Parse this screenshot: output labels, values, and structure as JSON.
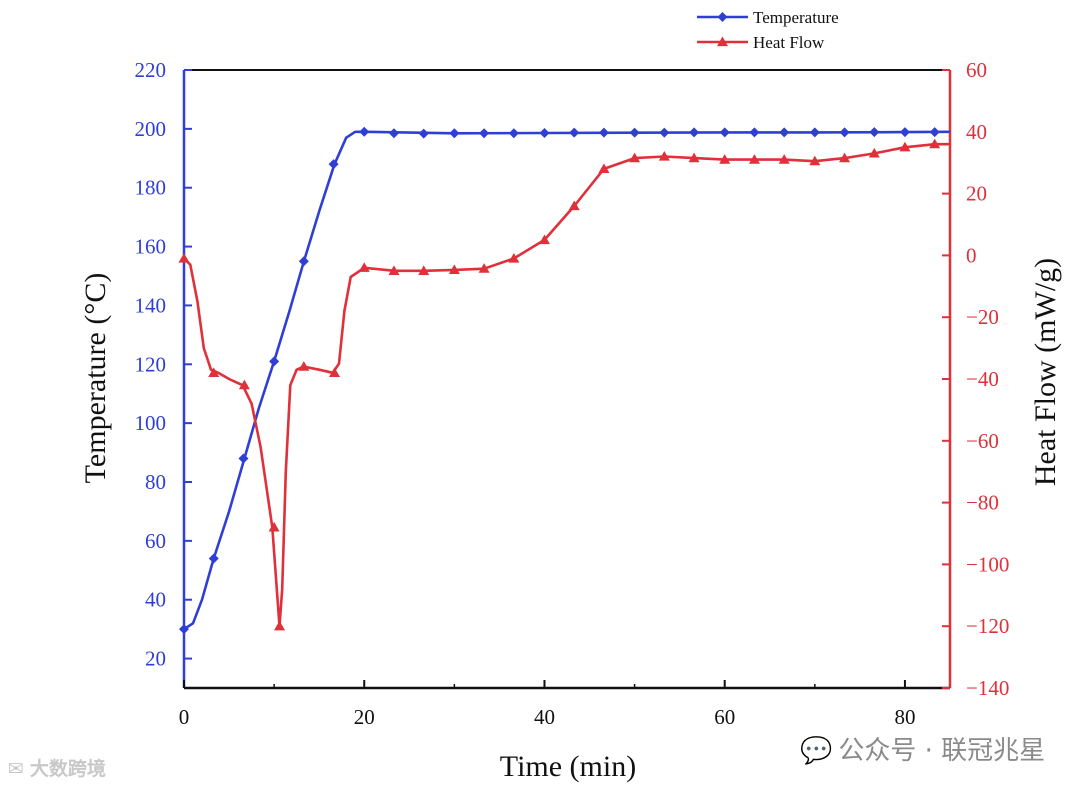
{
  "chart_data": {
    "type": "line",
    "title": "",
    "xlabel": "Time (min)",
    "ylabel_left": "Temperature (°C)",
    "ylabel_right": "Heat Flow (mW/g)",
    "xlim": [
      0,
      85
    ],
    "ylim_left": [
      10,
      220
    ],
    "ylim_right": [
      -140,
      60
    ],
    "x_ticks": [
      0,
      20,
      40,
      60,
      80
    ],
    "y_left_ticks": [
      20,
      40,
      60,
      80,
      100,
      120,
      140,
      160,
      180,
      200,
      220
    ],
    "y_right_ticks": [
      -140,
      -120,
      -100,
      -80,
      -60,
      -40,
      -20,
      0,
      20,
      40,
      60
    ],
    "legend_position": "top-right",
    "series": [
      {
        "name": "Temperature",
        "axis": "left",
        "color": "#2f3fd6",
        "marker": "diamond",
        "curve": [
          [
            0,
            30
          ],
          [
            1,
            32
          ],
          [
            2,
            40
          ],
          [
            3.3,
            54
          ],
          [
            5,
            70
          ],
          [
            6.7,
            88
          ],
          [
            8.3,
            105
          ],
          [
            10,
            121
          ],
          [
            11.7,
            138
          ],
          [
            13.3,
            155
          ],
          [
            15,
            172
          ],
          [
            16.7,
            188
          ],
          [
            18,
            197
          ],
          [
            19,
            199
          ],
          [
            20,
            199
          ],
          [
            30,
            198.5
          ],
          [
            40,
            198.6
          ],
          [
            50,
            198.7
          ],
          [
            60,
            198.8
          ],
          [
            70,
            198.8
          ],
          [
            80,
            198.9
          ],
          [
            85,
            199
          ]
        ],
        "markers": [
          [
            0,
            30
          ],
          [
            3.3,
            54
          ],
          [
            6.6,
            88
          ],
          [
            10,
            121
          ],
          [
            13.3,
            155
          ],
          [
            16.6,
            188
          ],
          [
            20,
            199
          ],
          [
            23.3,
            198.5
          ],
          [
            26.6,
            198.4
          ],
          [
            30,
            198.5
          ],
          [
            33.3,
            198.5
          ],
          [
            36.6,
            198.5
          ],
          [
            40,
            198.6
          ],
          [
            43.3,
            198.7
          ],
          [
            46.6,
            198.7
          ],
          [
            50,
            198.7
          ],
          [
            53.3,
            198.7
          ],
          [
            56.6,
            198.8
          ],
          [
            60,
            198.8
          ],
          [
            63.3,
            198.8
          ],
          [
            66.6,
            198.8
          ],
          [
            70,
            198.8
          ],
          [
            73.3,
            198.8
          ],
          [
            76.6,
            198.9
          ],
          [
            80,
            198.9
          ],
          [
            83.3,
            198.9
          ]
        ]
      },
      {
        "name": "Heat Flow",
        "axis": "right",
        "color": "#e0303a",
        "marker": "triangle",
        "curve": [
          [
            0,
            -1
          ],
          [
            0.7,
            -3
          ],
          [
            1.5,
            -15
          ],
          [
            2.2,
            -30
          ],
          [
            3,
            -37
          ],
          [
            3.8,
            -38
          ],
          [
            5,
            -40
          ],
          [
            6.5,
            -42
          ],
          [
            7.5,
            -48
          ],
          [
            8.5,
            -62
          ],
          [
            9.3,
            -78
          ],
          [
            9.8,
            -88
          ],
          [
            10.3,
            -108
          ],
          [
            10.6,
            -120
          ],
          [
            10.9,
            -108
          ],
          [
            11.3,
            -70
          ],
          [
            11.8,
            -42
          ],
          [
            12.5,
            -37
          ],
          [
            13.3,
            -36
          ],
          [
            15,
            -37
          ],
          [
            16.5,
            -38
          ],
          [
            17.2,
            -35
          ],
          [
            17.8,
            -18
          ],
          [
            18.5,
            -7
          ],
          [
            20,
            -4
          ],
          [
            23.3,
            -5
          ],
          [
            26.6,
            -5
          ],
          [
            30,
            -4.7
          ],
          [
            33.3,
            -4.3
          ],
          [
            36.6,
            -1
          ],
          [
            40,
            5
          ],
          [
            43.3,
            16
          ],
          [
            46.6,
            28
          ],
          [
            50,
            31.5
          ],
          [
            53.3,
            32
          ],
          [
            56.6,
            31.5
          ],
          [
            60,
            31
          ],
          [
            63.3,
            31
          ],
          [
            66.6,
            31
          ],
          [
            70,
            30.5
          ],
          [
            73.3,
            31.5
          ],
          [
            76.6,
            33
          ],
          [
            80,
            35
          ],
          [
            83.3,
            36
          ],
          [
            85,
            36
          ]
        ],
        "markers": [
          [
            0,
            -1
          ],
          [
            3.3,
            -38
          ],
          [
            6.7,
            -42
          ],
          [
            10,
            -88
          ],
          [
            10.6,
            -120
          ],
          [
            13.3,
            -36
          ],
          [
            16.7,
            -38
          ],
          [
            20,
            -4
          ],
          [
            23.3,
            -5
          ],
          [
            26.6,
            -5
          ],
          [
            30,
            -4.7
          ],
          [
            33.3,
            -4.3
          ],
          [
            36.6,
            -1
          ],
          [
            40,
            5
          ],
          [
            43.3,
            16
          ],
          [
            46.6,
            28
          ],
          [
            50,
            31.5
          ],
          [
            53.3,
            32
          ],
          [
            56.6,
            31.5
          ],
          [
            60,
            31
          ],
          [
            63.3,
            31
          ],
          [
            66.6,
            31
          ],
          [
            70,
            30.5
          ],
          [
            73.3,
            31.5
          ],
          [
            76.6,
            33
          ],
          [
            80,
            35
          ],
          [
            83.3,
            36
          ]
        ]
      }
    ]
  },
  "watermarks": {
    "left": "大数跨境",
    "right": "公众号 · 联冠兆星"
  },
  "icons": {
    "left": "chat-bubble-icon",
    "right": "wechat-icon"
  }
}
